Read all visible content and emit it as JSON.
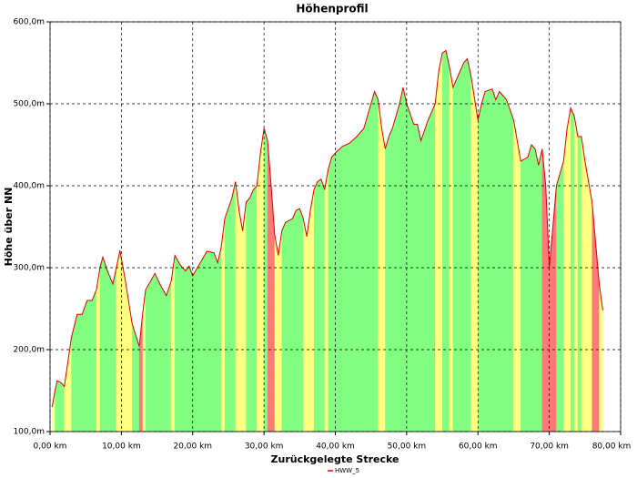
{
  "chart_data": {
    "type": "area",
    "title": "Höhenprofil",
    "x_label": "Zurückgelegte Strecke",
    "y_label": "Höhe über NN",
    "x": [
      0.3,
      0.7,
      1.0,
      1.5,
      2.0,
      2.5,
      3.0,
      3.8,
      4.5,
      5.2,
      5.9,
      6.5,
      7.0,
      7.4,
      8.0,
      8.8,
      9.3,
      9.8,
      10.6,
      11.5,
      12.5,
      13.0,
      13.4,
      14.0,
      14.7,
      15.4,
      16.3,
      17.0,
      17.5,
      18.2,
      19.0,
      19.5,
      20.0,
      21.0,
      22.0,
      23.0,
      23.5,
      24.0,
      24.5,
      25.5,
      26.0,
      26.5,
      27.0,
      27.5,
      28.0,
      28.5,
      29.0,
      29.5,
      30.0,
      30.5,
      31.0,
      31.5,
      32.0,
      32.5,
      33.0,
      34.0,
      34.5,
      35.0,
      35.5,
      36.0,
      36.5,
      37.0,
      37.5,
      38.0,
      38.5,
      39.0,
      39.5,
      40.0,
      41.0,
      42.0,
      43.0,
      44.0,
      45.0,
      45.5,
      46.0,
      46.5,
      47.0,
      47.5,
      48.0,
      49.0,
      49.5,
      50.0,
      51.0,
      51.5,
      52.0,
      53.0,
      54.0,
      54.5,
      55.0,
      55.5,
      56.0,
      56.5,
      57.0,
      58.0,
      58.5,
      59.0,
      60.0,
      60.5,
      61.0,
      62.0,
      62.5,
      63.0,
      63.5,
      64.0,
      65.0,
      66.0,
      67.0,
      67.5,
      68.0,
      68.5,
      69.0,
      69.5,
      70.0,
      70.5,
      71.0,
      72.0,
      72.5,
      73.0,
      73.5,
      74.0,
      74.5,
      75.0,
      76.0,
      76.5,
      77.0,
      77.5
    ],
    "series": [
      {
        "name": "HWW_5",
        "color": "#e00000",
        "values": [
          130,
          150,
          162,
          160,
          155,
          185,
          215,
          243,
          243,
          260,
          260,
          273,
          300,
          313,
          297,
          280,
          300,
          321,
          282,
          232,
          204,
          245,
          273,
          282,
          293,
          280,
          266,
          284,
          315,
          304,
          296,
          302,
          290,
          305,
          320,
          318,
          306,
          325,
          360,
          385,
          405,
          370,
          345,
          380,
          385,
          395,
          400,
          440,
          470,
          455,
          400,
          340,
          315,
          345,
          355,
          360,
          370,
          372,
          360,
          338,
          370,
          395,
          405,
          408,
          395,
          420,
          435,
          440,
          448,
          452,
          460,
          470,
          500,
          515,
          505,
          470,
          445,
          460,
          470,
          500,
          520,
          500,
          475,
          475,
          455,
          480,
          500,
          540,
          562,
          565,
          545,
          520,
          530,
          550,
          555,
          535,
          480,
          500,
          515,
          518,
          505,
          515,
          510,
          505,
          480,
          430,
          435,
          450,
          445,
          425,
          445,
          400,
          300,
          350,
          400,
          430,
          470,
          495,
          485,
          460,
          460,
          430,
          380,
          330,
          280,
          248
        ]
      }
    ],
    "fill_colors": [
      "#80ff80",
      "#ffff80",
      "#ff7878"
    ],
    "xlim": [
      0,
      80
    ],
    "xticks": [
      {
        "value": 0,
        "label": "0,00 km"
      },
      {
        "value": 10,
        "label": "10,00 km"
      },
      {
        "value": 20,
        "label": "20,00 km"
      },
      {
        "value": 30,
        "label": "30,00 km"
      },
      {
        "value": 40,
        "label": "40,00 km"
      },
      {
        "value": 50,
        "label": "50,00 km"
      },
      {
        "value": 60,
        "label": "60,00 km"
      },
      {
        "value": 70,
        "label": "70,00 km"
      },
      {
        "value": 80,
        "label": "80,00 km"
      }
    ],
    "ylim": [
      100,
      600
    ],
    "yticks": [
      {
        "value": 100,
        "label": "100,0m"
      },
      {
        "value": 200,
        "label": "200,0m"
      },
      {
        "value": 300,
        "label": "300,0m"
      },
      {
        "value": 400,
        "label": "400,0m"
      },
      {
        "value": 500,
        "label": "500,0m"
      },
      {
        "value": 600,
        "label": "600,0m"
      }
    ],
    "grid": true
  }
}
